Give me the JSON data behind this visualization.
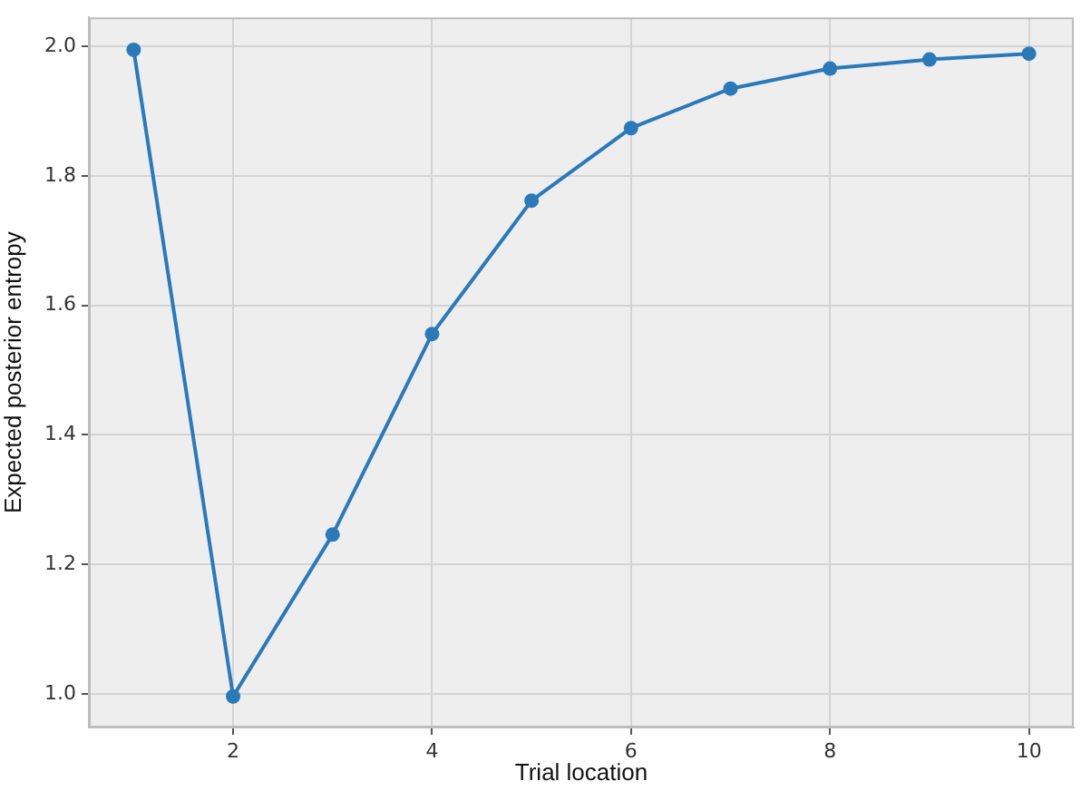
{
  "chart_data": {
    "type": "line",
    "xlabel": "Trial location",
    "ylabel": "Expected posterior entropy",
    "x": [
      1,
      2,
      3,
      4,
      5,
      6,
      7,
      8,
      9,
      10
    ],
    "series": [
      {
        "color": "#2a7ab9",
        "values": [
          1.995,
          0.996,
          1.246,
          1.556,
          1.762,
          1.874,
          1.935,
          1.966,
          1.98,
          1.989
        ]
      }
    ],
    "xlim": [
      0.55,
      10.45
    ],
    "ylim": [
      0.948,
      2.045
    ],
    "xticks": [
      2,
      4,
      6,
      8,
      10
    ],
    "yticks": [
      {
        "value": 1,
        "label": "1.0"
      },
      1.2,
      1.4,
      1.6,
      1.8,
      {
        "value": 2,
        "label": "2.0"
      }
    ],
    "grid": true,
    "marker": "circle",
    "line_style": "solid"
  }
}
